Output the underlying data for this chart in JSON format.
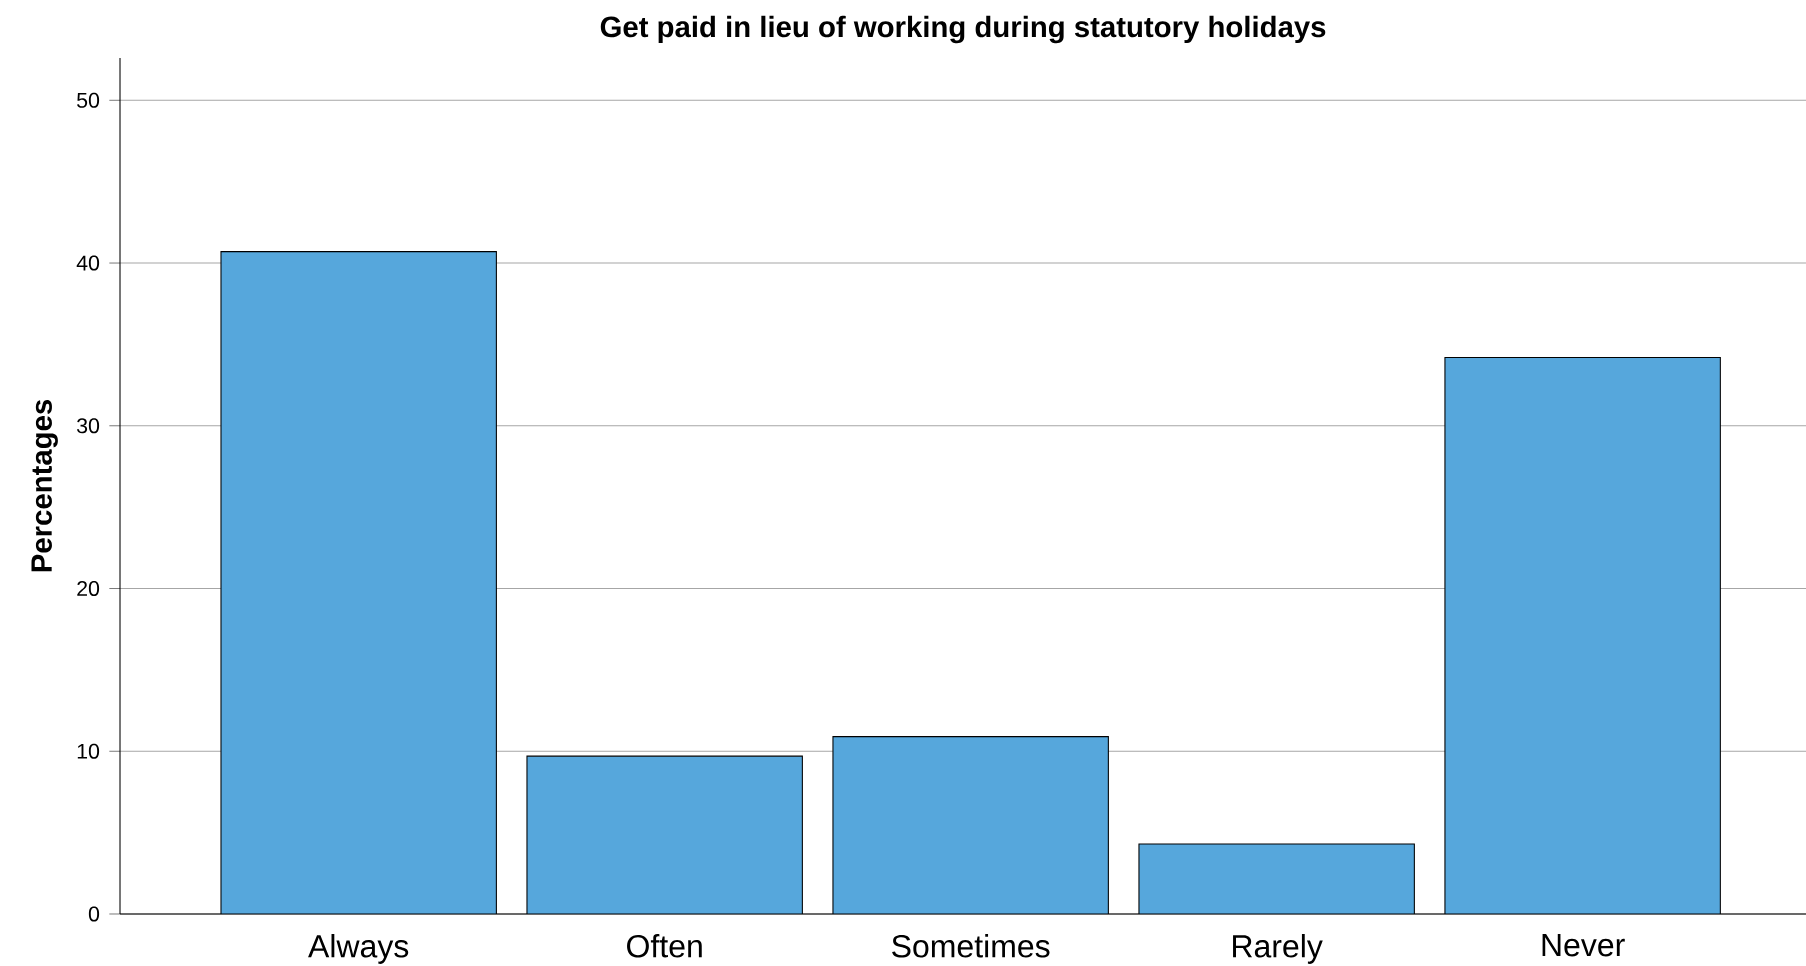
{
  "chart_data": {
    "type": "bar",
    "title": "Get paid in lieu of working during statutory holidays",
    "ylabel": "Percentages",
    "categories": [
      "Always",
      "Often",
      "Sometimes",
      "Rarely",
      "Never"
    ],
    "values": [
      40.7,
      9.7,
      10.9,
      4.3,
      34.2
    ],
    "color": "#56a7dc",
    "ylim": [
      0,
      52.6
    ],
    "yticks": [
      0,
      10,
      20,
      30,
      40,
      50
    ],
    "grid": "y"
  }
}
